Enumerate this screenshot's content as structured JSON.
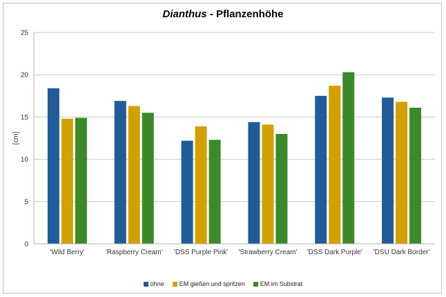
{
  "chart_data": {
    "type": "bar",
    "title_italic": "Dianthus",
    "title_rest": " - Pflanzenhöhe",
    "xlabel": "",
    "ylabel": "[cm]",
    "ylim": [
      0,
      25
    ],
    "yticks": [
      0,
      5,
      10,
      15,
      20,
      25
    ],
    "grid": true,
    "legend_position": "bottom",
    "categories": [
      "'Wild Berry'",
      "'Raspberry Cream'",
      "'DSS Purple Pink'",
      "'Strawberry Cream'",
      "'DSS Dark Purple'",
      "'DSU Dark Border'"
    ],
    "series": [
      {
        "name": "ohne",
        "color": "#1f5c99",
        "values": [
          18.4,
          16.9,
          12.2,
          14.4,
          17.5,
          17.3
        ]
      },
      {
        "name": "EM gießen und spritzen",
        "color": "#d4a000",
        "values": [
          14.8,
          16.3,
          13.9,
          14.1,
          18.7,
          16.8
        ]
      },
      {
        "name": "EM im Substrat",
        "color": "#3a8a2a",
        "values": [
          14.9,
          15.5,
          12.3,
          13.0,
          20.3,
          16.1
        ]
      }
    ]
  }
}
